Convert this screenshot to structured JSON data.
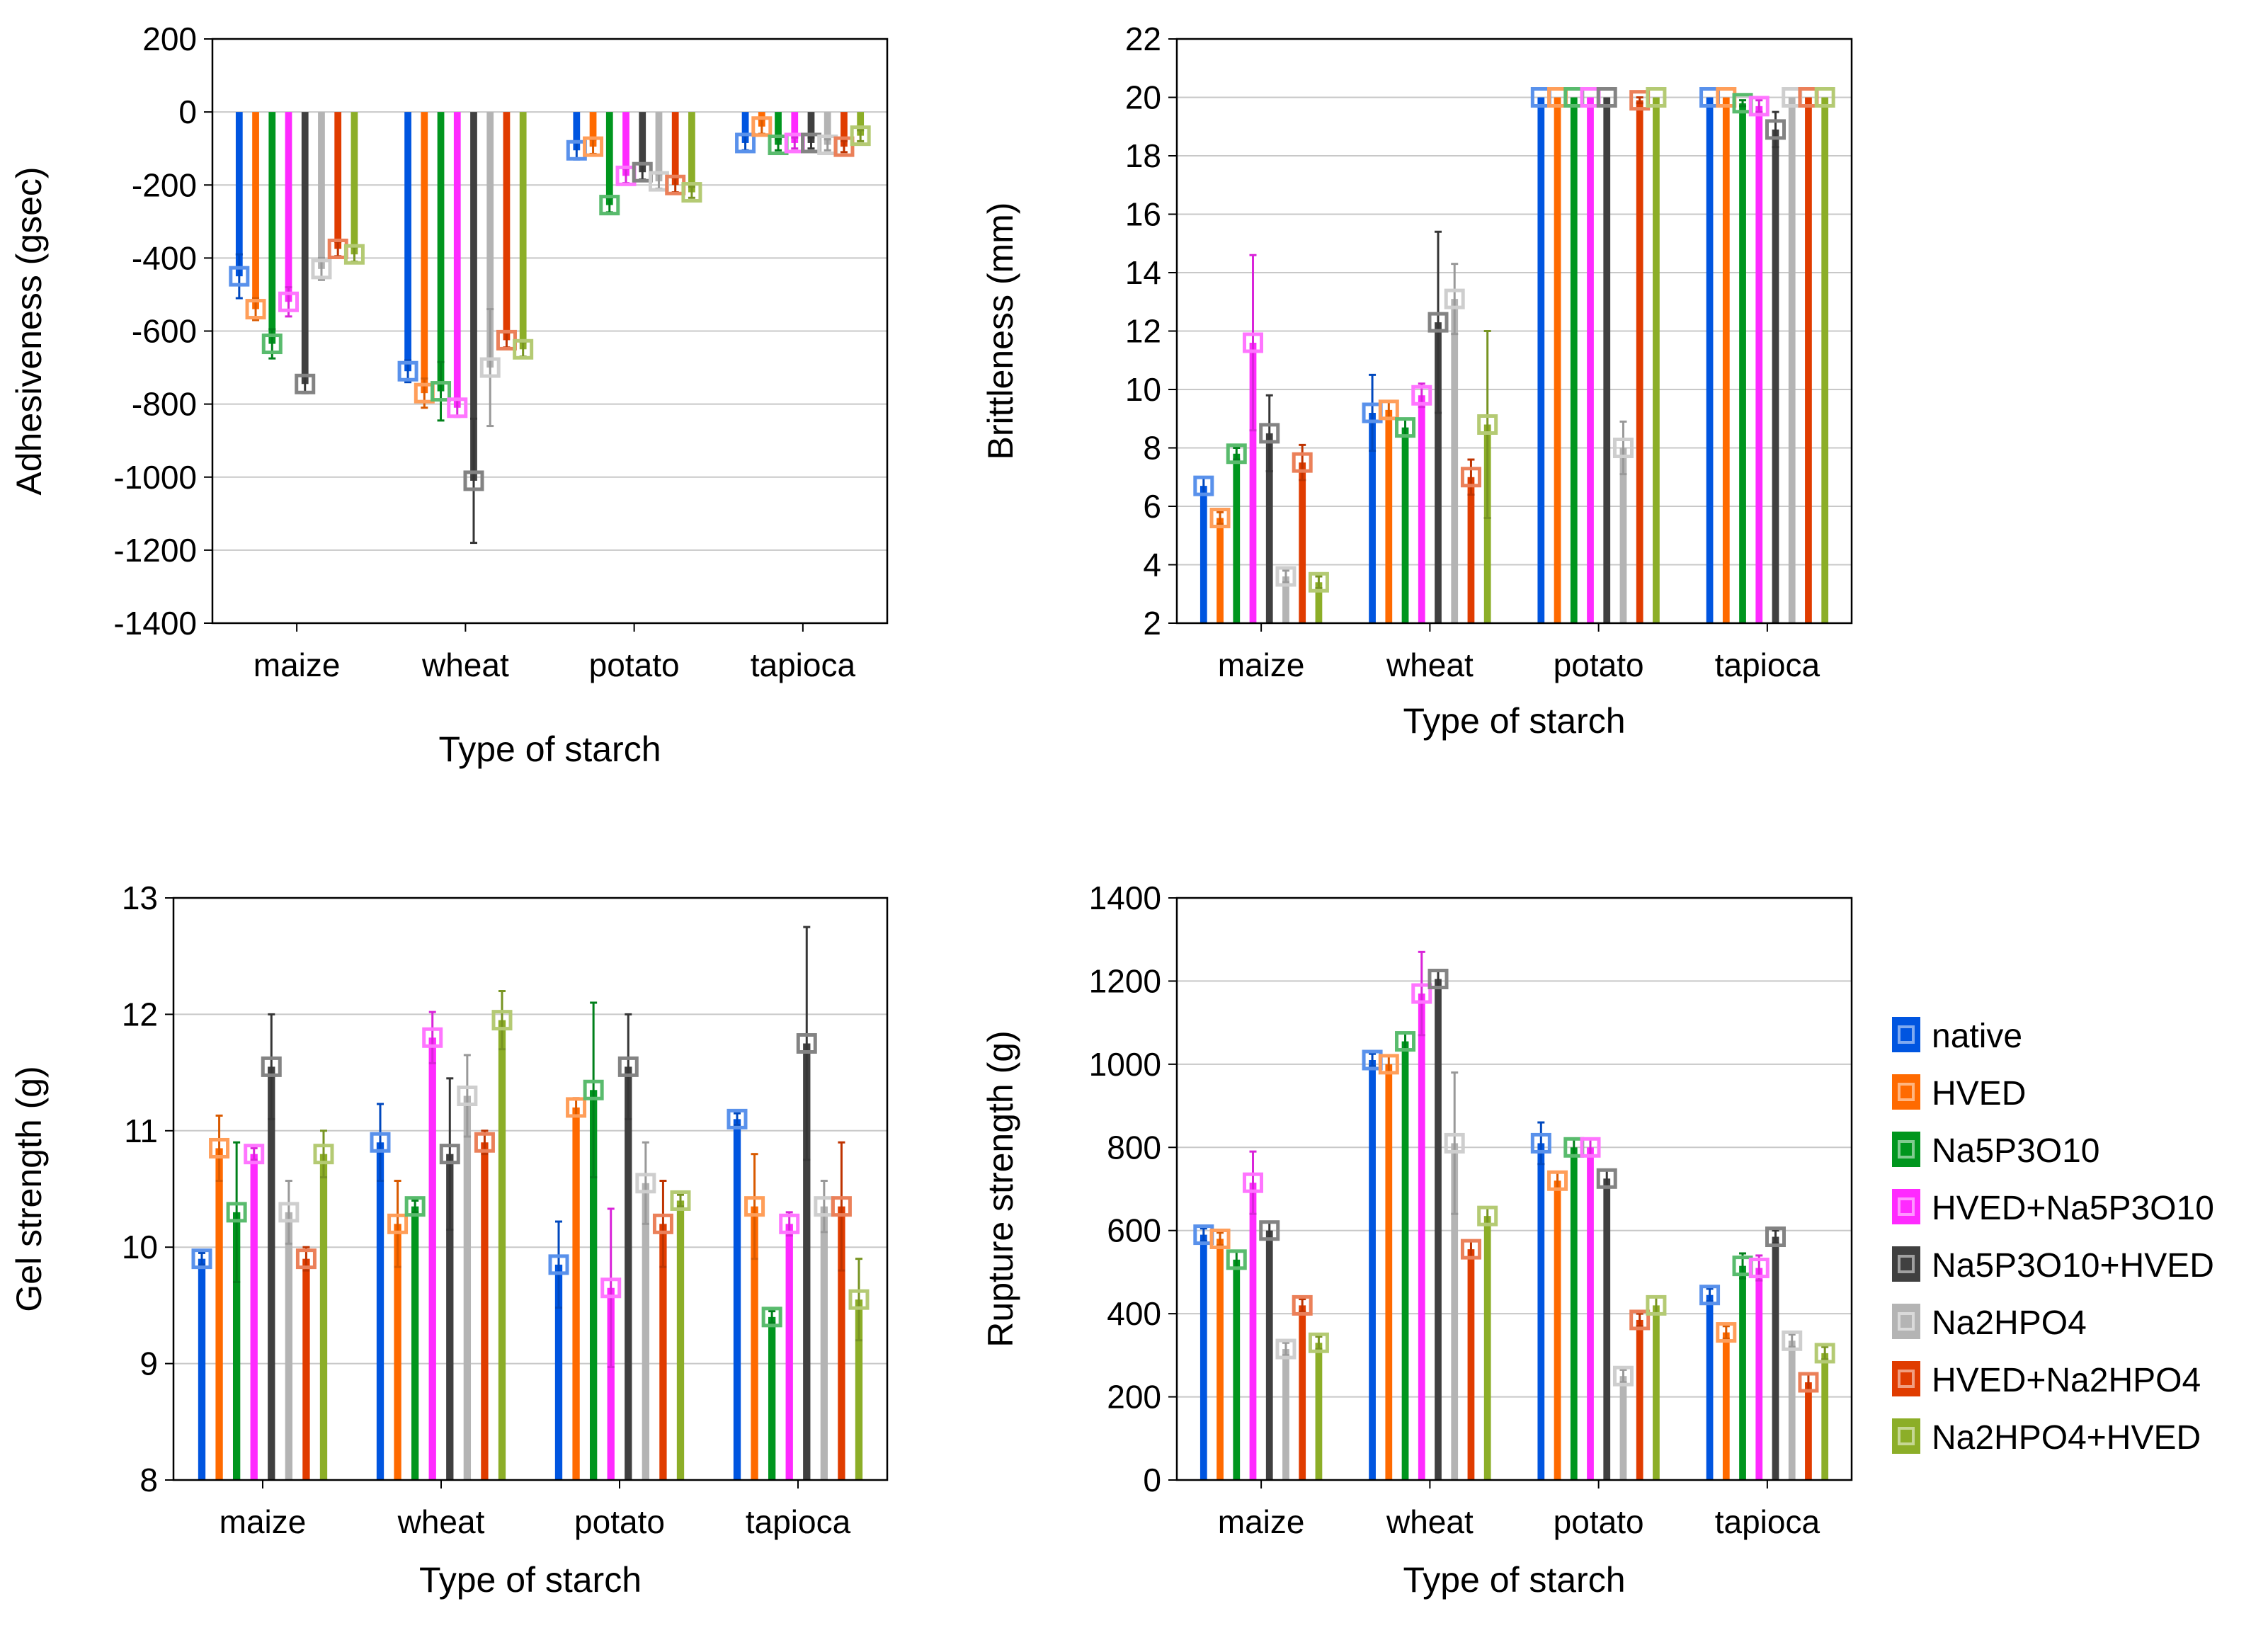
{
  "legend": {
    "position": "right",
    "entries": [
      {
        "label": "native",
        "color": "#0055e0"
      },
      {
        "label": "HVED",
        "color": "#ff6a00"
      },
      {
        "label": "Na5P3O10",
        "color": "#00961e"
      },
      {
        "label": "HVED+Na5P3O10",
        "color": "#ff2aff"
      },
      {
        "label": "Na5P3O10+HVED",
        "color": "#404040"
      },
      {
        "label": "Na2HPO4",
        "color": "#b4b4b4"
      },
      {
        "label": "HVED+Na2HPO4",
        "color": "#e03c00"
      },
      {
        "label": "Na2HPO4+HVED",
        "color": "#8cae28"
      }
    ]
  },
  "chart_data": [
    {
      "type": "bar",
      "panel": "top-left",
      "ylabel": "Adhesiveness (gsec)",
      "xlabel": "Type of starch",
      "categories": [
        "maize",
        "wheat",
        "potato",
        "tapioca"
      ],
      "ylim": [
        -1400,
        200
      ],
      "yticks": [
        200,
        0,
        -200,
        -400,
        -600,
        -800,
        -1000,
        -1200,
        -1400
      ],
      "grid": true,
      "series": [
        {
          "name": "native",
          "values": [
            -450,
            -710,
            -105,
            -85
          ],
          "errors": [
            60,
            30,
            25,
            20
          ]
        },
        {
          "name": "HVED",
          "values": [
            -540,
            -770,
            -95,
            -40
          ],
          "errors": [
            30,
            40,
            20,
            20
          ]
        },
        {
          "name": "Na5P3O10",
          "values": [
            -635,
            -765,
            -255,
            -90
          ],
          "errors": [
            40,
            80,
            20,
            15
          ]
        },
        {
          "name": "HVED+Na5P3O10",
          "values": [
            -520,
            -810,
            -175,
            -85
          ],
          "errors": [
            40,
            25,
            20,
            15
          ]
        },
        {
          "name": "Na5P3O10+HVED",
          "values": [
            -745,
            -1010,
            -165,
            -85
          ],
          "errors": [
            25,
            170,
            20,
            15
          ]
        },
        {
          "name": "Na2HPO4",
          "values": [
            -430,
            -700,
            -190,
            -90
          ],
          "errors": [
            30,
            160,
            20,
            15
          ]
        },
        {
          "name": "HVED+Na2HPO4",
          "values": [
            -375,
            -625,
            -200,
            -95
          ],
          "errors": [
            20,
            20,
            20,
            15
          ]
        },
        {
          "name": "Na2HPO4+HVED",
          "values": [
            -390,
            -650,
            -220,
            -65
          ],
          "errors": [
            20,
            20,
            15,
            15
          ]
        }
      ]
    },
    {
      "type": "bar",
      "panel": "top-right",
      "ylabel": "Brittleness (mm)",
      "xlabel": "Type of starch",
      "categories": [
        "maize",
        "wheat",
        "potato",
        "tapioca"
      ],
      "ylim": [
        2,
        22
      ],
      "yticks": [
        22,
        20,
        18,
        16,
        14,
        12,
        10,
        8,
        6,
        4,
        2
      ],
      "grid": true,
      "series": [
        {
          "name": "native",
          "values": [
            6.7,
            9.2,
            20,
            20
          ],
          "errors": [
            0.3,
            1.3,
            0,
            0
          ]
        },
        {
          "name": "HVED",
          "values": [
            5.6,
            9.3,
            20,
            20
          ],
          "errors": [
            0.2,
            0.3,
            0,
            0
          ]
        },
        {
          "name": "Na5P3O10",
          "values": [
            7.8,
            8.7,
            20,
            19.8
          ],
          "errors": [
            0.2,
            0.3,
            0,
            0.1
          ]
        },
        {
          "name": "HVED+Na5P3O10",
          "values": [
            11.6,
            9.8,
            20,
            19.7
          ],
          "errors": [
            3.0,
            0.4,
            0,
            0.2
          ]
        },
        {
          "name": "Na5P3O10+HVED",
          "values": [
            8.5,
            12.3,
            20,
            18.9
          ],
          "errors": [
            1.3,
            3.1,
            0,
            0.6
          ]
        },
        {
          "name": "Na2HPO4",
          "values": [
            3.6,
            13.1,
            8.0,
            20
          ],
          "errors": [
            0.2,
            1.2,
            0.9,
            0
          ]
        },
        {
          "name": "HVED+Na2HPO4",
          "values": [
            7.5,
            7.0,
            19.9,
            20
          ],
          "errors": [
            0.6,
            0.6,
            0.1,
            0
          ]
        },
        {
          "name": "Na2HPO4+HVED",
          "values": [
            3.4,
            8.8,
            20,
            20
          ],
          "errors": [
            0.2,
            3.2,
            0,
            0
          ]
        }
      ]
    },
    {
      "type": "bar",
      "panel": "bottom-left",
      "ylabel": "Gel strength (g)",
      "xlabel": "Type of starch",
      "categories": [
        "maize",
        "wheat",
        "potato",
        "tapioca"
      ],
      "ylim": [
        8,
        13
      ],
      "yticks": [
        13,
        12,
        11,
        10,
        9,
        8
      ],
      "grid": true,
      "series": [
        {
          "name": "native",
          "values": [
            9.9,
            10.9,
            9.85,
            11.1
          ],
          "errors": [
            0.05,
            0.33,
            0.37,
            0.05
          ]
        },
        {
          "name": "HVED",
          "values": [
            10.85,
            10.2,
            11.2,
            10.35
          ],
          "errors": [
            0.28,
            0.37,
            0.08,
            0.45
          ]
        },
        {
          "name": "Na5P3O10",
          "values": [
            10.3,
            10.35,
            11.35,
            9.4
          ],
          "errors": [
            0.6,
            0.05,
            0.75,
            0.05
          ]
        },
        {
          "name": "HVED+Na5P3O10",
          "values": [
            10.8,
            11.8,
            9.65,
            10.2
          ],
          "errors": [
            0.05,
            0.22,
            0.68,
            0.1
          ]
        },
        {
          "name": "Na5P3O10+HVED",
          "values": [
            11.55,
            10.8,
            11.55,
            11.75
          ],
          "errors": [
            0.45,
            0.65,
            0.45,
            1.0
          ]
        },
        {
          "name": "Na2HPO4",
          "values": [
            10.3,
            11.3,
            10.55,
            10.35
          ],
          "errors": [
            0.27,
            0.35,
            0.35,
            0.22
          ]
        },
        {
          "name": "HVED+Na2HPO4",
          "values": [
            9.9,
            10.9,
            10.2,
            10.35
          ],
          "errors": [
            0.1,
            0.1,
            0.37,
            0.55
          ]
        },
        {
          "name": "Na2HPO4+HVED",
          "values": [
            10.8,
            11.95,
            10.4,
            9.55
          ],
          "errors": [
            0.2,
            0.25,
            0.05,
            0.35
          ]
        }
      ]
    },
    {
      "type": "bar",
      "panel": "bottom-right",
      "ylabel": "Rupture strength (g)",
      "xlabel": "Type of starch",
      "categories": [
        "maize",
        "wheat",
        "potato",
        "tapioca"
      ],
      "ylim": [
        0,
        1400
      ],
      "yticks": [
        1400,
        1200,
        1000,
        800,
        600,
        400,
        200,
        0
      ],
      "grid": true,
      "series": [
        {
          "name": "native",
          "values": [
            590,
            1010,
            810,
            445
          ],
          "errors": [
            15,
            15,
            50,
            15
          ]
        },
        {
          "name": "HVED",
          "values": [
            580,
            1000,
            720,
            355
          ],
          "errors": [
            15,
            20,
            20,
            15
          ]
        },
        {
          "name": "Na5P3O10",
          "values": [
            530,
            1055,
            800,
            515
          ],
          "errors": [
            20,
            20,
            20,
            30
          ]
        },
        {
          "name": "HVED+Na5P3O10",
          "values": [
            715,
            1170,
            800,
            510
          ],
          "errors": [
            75,
            100,
            20,
            30
          ]
        },
        {
          "name": "Na5P3O10+HVED",
          "values": [
            600,
            1205,
            725,
            585
          ],
          "errors": [
            20,
            20,
            20,
            15
          ]
        },
        {
          "name": "Na2HPO4",
          "values": [
            315,
            810,
            250,
            335
          ],
          "errors": [
            15,
            170,
            15,
            15
          ]
        },
        {
          "name": "HVED+Na2HPO4",
          "values": [
            420,
            555,
            385,
            235
          ],
          "errors": [
            15,
            20,
            15,
            20
          ]
        },
        {
          "name": "Na2HPO4+HVED",
          "values": [
            330,
            635,
            420,
            305
          ],
          "errors": [
            15,
            20,
            20,
            15
          ]
        }
      ]
    }
  ]
}
